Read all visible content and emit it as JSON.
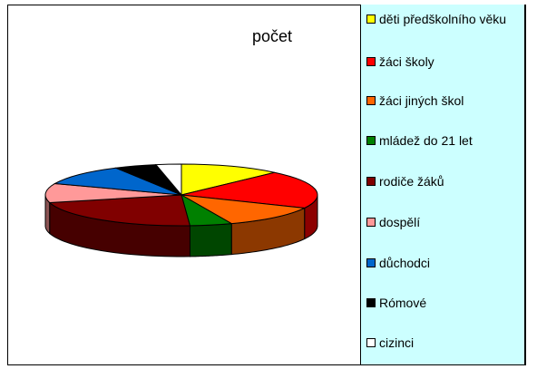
{
  "chart_data": {
    "type": "pie3d",
    "title": "počet",
    "categories": [
      "děti předškolního věku",
      "žáci školy",
      "žáci jiných škol",
      "mládež do 21 let",
      "rodiče žáků",
      "dospělí",
      "důchodci",
      "Rómové",
      "cizinci"
    ],
    "values": [
      12,
      20,
      12,
      5,
      22,
      10,
      11,
      5,
      3
    ],
    "colors": [
      "#ffff00",
      "#ff0000",
      "#ff6600",
      "#008000",
      "#800000",
      "#ff9999",
      "#0066cc",
      "#000000",
      "#ffffff"
    ],
    "legend": "right"
  }
}
